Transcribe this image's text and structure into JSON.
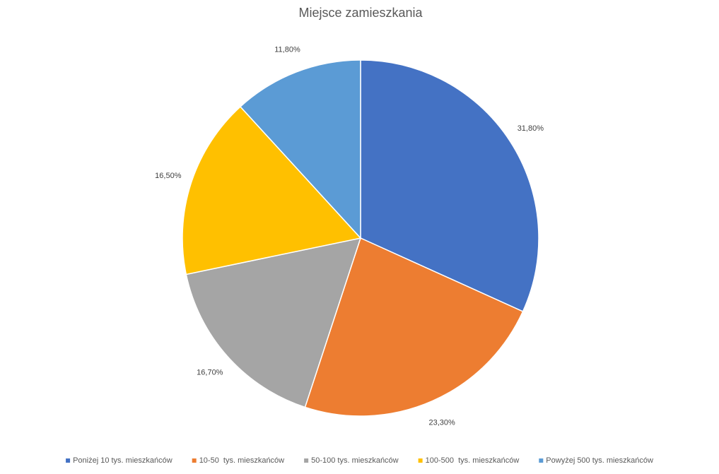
{
  "chart_data": {
    "type": "pie",
    "title": "Miejsce zamieszkania",
    "categories": [
      "Poniżej 10 tys. mieszkańców",
      "10-50  tys. mieszkańców",
      "50-100 tys. mieszkańców",
      "100-500  tys. mieszkańców",
      "Powyżej 500 tys. mieszkańców"
    ],
    "values": [
      31.8,
      23.3,
      16.7,
      16.5,
      11.8
    ],
    "value_labels": [
      "31,80%",
      "23,30%",
      "16,70%",
      "16,50%",
      "11,80%"
    ],
    "colors": [
      "#4472c4",
      "#ed7d31",
      "#a5a5a5",
      "#ffc000",
      "#5b9bd5"
    ],
    "legend": "bottom"
  }
}
